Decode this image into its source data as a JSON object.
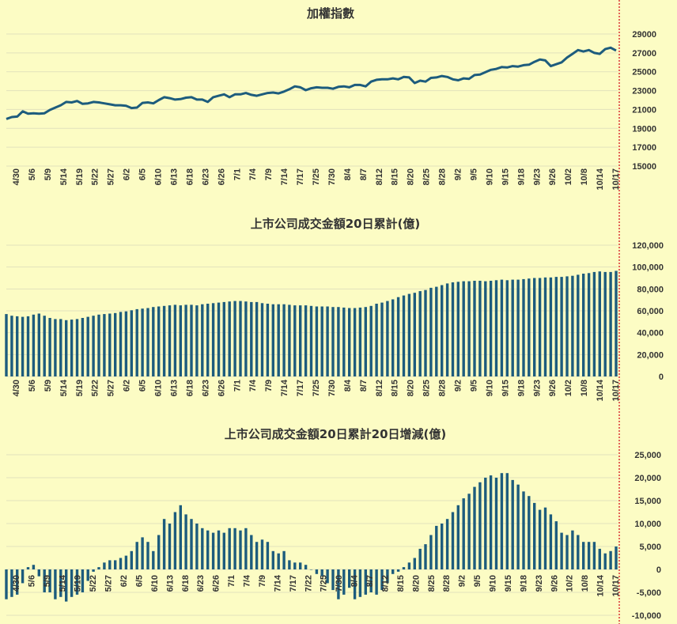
{
  "colors": {
    "background": "#fcfcc4",
    "series": "#1d5c7d",
    "grid": "#e2e2bc",
    "marker": "#d8262a"
  },
  "chart_data": [
    {
      "type": "line",
      "title": "加權指數",
      "ylim": [
        15000,
        29000
      ],
      "yticks": [
        "29000",
        "27000",
        "25000",
        "23000",
        "21000",
        "19000",
        "17000",
        "15000"
      ],
      "xticks": [
        "4/30",
        "5/6",
        "5/9",
        "5/14",
        "5/19",
        "5/22",
        "5/27",
        "6/2",
        "6/5",
        "6/10",
        "6/13",
        "6/18",
        "6/23",
        "6/26",
        "7/1",
        "7/4",
        "7/9",
        "7/14",
        "7/17",
        "7/25",
        "7/30",
        "8/4",
        "8/7",
        "8/12",
        "8/15",
        "8/20",
        "8/25",
        "8/28",
        "9/2",
        "9/5",
        "9/10",
        "9/15",
        "9/18",
        "9/23",
        "9/26",
        "10/2",
        "10/8",
        "10/14",
        "10/17"
      ],
      "grid": true,
      "series": [
        {
          "values": [
            20000,
            20200,
            20250,
            20800,
            20550,
            20600,
            20550,
            20600,
            20950,
            21200,
            21450,
            21800,
            21750,
            21900,
            21600,
            21650,
            21800,
            21750,
            21650,
            21550,
            21450,
            21450,
            21400,
            21150,
            21200,
            21700,
            21750,
            21650,
            22000,
            22300,
            22200,
            22050,
            22100,
            22250,
            22300,
            22050,
            22050,
            21800,
            22300,
            22450,
            22600,
            22300,
            22600,
            22600,
            22750,
            22550,
            22450,
            22600,
            22750,
            22800,
            22700,
            22900,
            23150,
            23450,
            23350,
            23050,
            23250,
            23350,
            23300,
            23300,
            23200,
            23400,
            23450,
            23350,
            23600,
            23600,
            23450,
            23950,
            24150,
            24200,
            24200,
            24300,
            24200,
            24450,
            24400,
            23800,
            24050,
            23950,
            24350,
            24400,
            24550,
            24450,
            24200,
            24100,
            24300,
            24250,
            24650,
            24700,
            24950,
            25200,
            25300,
            25500,
            25450,
            25600,
            25550,
            25700,
            25750,
            26050,
            26300,
            26200,
            25600,
            25800,
            26000,
            26500,
            26900,
            27300,
            27150,
            27300,
            27000,
            26900,
            27400,
            27550,
            27250
          ]
        }
      ]
    },
    {
      "type": "bar",
      "title": "上市公司成交金額20日累計(億)",
      "ylim": [
        0,
        120000
      ],
      "yticks": [
        "120,000",
        "100,000",
        "80,000",
        "60,000",
        "40,000",
        "20,000",
        "0"
      ],
      "xticks": [
        "4/30",
        "5/6",
        "5/9",
        "5/14",
        "5/19",
        "5/22",
        "5/27",
        "6/2",
        "6/5",
        "6/10",
        "6/13",
        "6/18",
        "6/23",
        "6/26",
        "7/1",
        "7/4",
        "7/9",
        "7/14",
        "7/17",
        "7/25",
        "7/30",
        "8/4",
        "8/7",
        "8/12",
        "8/15",
        "8/20",
        "8/25",
        "8/28",
        "9/2",
        "9/5",
        "9/10",
        "9/15",
        "9/18",
        "9/23",
        "9/26",
        "10/2",
        "10/8",
        "10/14",
        "10/17"
      ],
      "grid": true,
      "series": [
        {
          "values": [
            57000,
            55500,
            55000,
            54500,
            55000,
            56500,
            57500,
            55500,
            53500,
            52500,
            52500,
            51500,
            52000,
            52500,
            53500,
            54500,
            55500,
            56500,
            57000,
            57500,
            58000,
            59000,
            59500,
            60500,
            61500,
            62000,
            62500,
            63500,
            64000,
            64500,
            65000,
            65500,
            65000,
            65500,
            65500,
            65000,
            66000,
            66500,
            67000,
            67500,
            68000,
            68500,
            69000,
            69000,
            68500,
            68000,
            68000,
            67000,
            66500,
            66000,
            66000,
            66000,
            65500,
            65000,
            65000,
            65000,
            64500,
            64000,
            64000,
            64000,
            63500,
            63500,
            63000,
            62500,
            62500,
            63000,
            63500,
            64500,
            66500,
            67500,
            69000,
            70500,
            72500,
            74000,
            75500,
            76500,
            78000,
            79000,
            81000,
            82000,
            83500,
            85000,
            86000,
            86500,
            87000,
            87000,
            87500,
            87500,
            87000,
            87500,
            88000,
            88500,
            88000,
            88500,
            88500,
            89000,
            89500,
            90000,
            90000,
            90500,
            90500,
            91000,
            91000,
            91500,
            92000,
            93000,
            94000,
            94500,
            95500,
            96000,
            95500,
            95500,
            96500
          ]
        }
      ]
    },
    {
      "type": "bar",
      "title": "上市公司成交金額20日累計20日增減(億)",
      "ylim": [
        -10000,
        25000
      ],
      "yticks": [
        "25,000",
        "20,000",
        "15,000",
        "10,000",
        "5,000",
        "0",
        "-5,000",
        "-10,000"
      ],
      "xticks": [
        "4/30",
        "5/6",
        "5/9",
        "5/14",
        "5/19",
        "5/22",
        "5/27",
        "6/2",
        "6/5",
        "6/10",
        "6/13",
        "6/18",
        "6/23",
        "6/26",
        "7/1",
        "7/4",
        "7/9",
        "7/14",
        "7/17",
        "7/22",
        "7/25",
        "7/30",
        "8/4",
        "8/7",
        "8/12",
        "8/15",
        "8/20",
        "8/25",
        "8/28",
        "9/2",
        "9/5",
        "9/10",
        "9/15",
        "9/18",
        "9/23",
        "9/26",
        "10/2",
        "10/8",
        "10/14",
        "10/17"
      ],
      "grid": true,
      "series": [
        {
          "values": [
            -6500,
            -6000,
            -5500,
            -3000,
            500,
            1000,
            -1500,
            -5000,
            -5000,
            -6500,
            -6000,
            -7000,
            -6000,
            -5500,
            -5000,
            -2500,
            -500,
            500,
            1500,
            2000,
            2000,
            2500,
            3000,
            4000,
            6000,
            7000,
            6000,
            4000,
            7500,
            11000,
            10000,
            12500,
            14000,
            12000,
            11000,
            10000,
            9000,
            8500,
            8000,
            8500,
            8000,
            9000,
            9000,
            8500,
            9000,
            7500,
            6000,
            6500,
            6000,
            4000,
            3500,
            4000,
            2000,
            1500,
            1500,
            1000,
            0,
            -1000,
            -1500,
            -3000,
            -4500,
            -6500,
            -5500,
            -4000,
            -6500,
            -6000,
            -5500,
            -5000,
            -5500,
            -4500,
            -3000,
            -1000,
            -500,
            500,
            1500,
            2500,
            4500,
            5500,
            7500,
            9500,
            10000,
            11000,
            12500,
            14000,
            15500,
            16500,
            18000,
            19000,
            20000,
            20500,
            20000,
            21000,
            21000,
            19500,
            18500,
            17000,
            16000,
            14500,
            13000,
            13500,
            12000,
            10500,
            8000,
            7500,
            8500,
            7500,
            6000,
            6000,
            6000,
            4500,
            3500,
            4000,
            5000
          ]
        }
      ]
    }
  ]
}
